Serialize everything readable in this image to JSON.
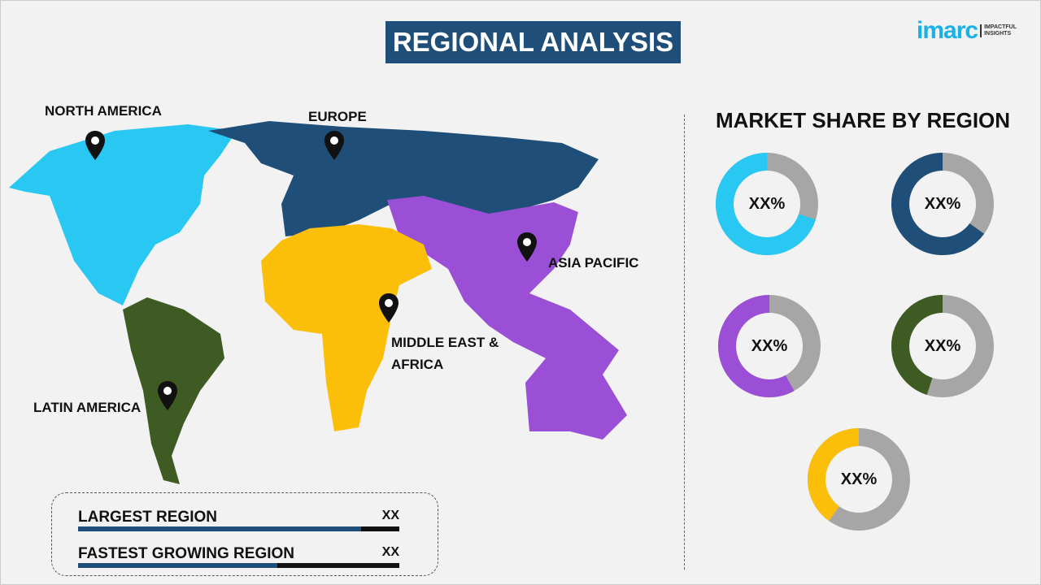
{
  "title": "REGIONAL ANALYSIS",
  "logo": {
    "word": "imarc",
    "tag_line1": "IMPACTFUL",
    "tag_line2": "INSIGHTS"
  },
  "map": {
    "regions": [
      {
        "name": "NORTH AMERICA",
        "color": "#29c8f3"
      },
      {
        "name": "EUROPE",
        "color": "#1f4e79"
      },
      {
        "name": "ASIA PACIFIC",
        "color": "#9b4fd6"
      },
      {
        "name": "MIDDLE EAST & AFRICA",
        "color": "#fbbf0a"
      },
      {
        "name": "LATIN AMERICA",
        "color": "#3e5b23"
      }
    ]
  },
  "market_share": {
    "title": "MARKET SHARE BY REGION",
    "donuts": [
      {
        "label": "XX%",
        "color": "#29c8f3",
        "fraction": 0.7
      },
      {
        "label": "XX%",
        "color": "#1f4e79",
        "fraction": 0.65
      },
      {
        "label": "XX%",
        "color": "#9b4fd6",
        "fraction": 0.58
      },
      {
        "label": "XX%",
        "color": "#3e5b23",
        "fraction": 0.45
      },
      {
        "label": "XX%",
        "color": "#fbbf0a",
        "fraction": 0.4
      }
    ],
    "remainder_color": "#a6a6a6"
  },
  "summary": [
    {
      "label": "LARGEST REGION",
      "value": "XX",
      "fill": 0.88
    },
    {
      "label": "FASTEST GROWING REGION",
      "value": "XX",
      "fill": 0.62
    }
  ]
}
